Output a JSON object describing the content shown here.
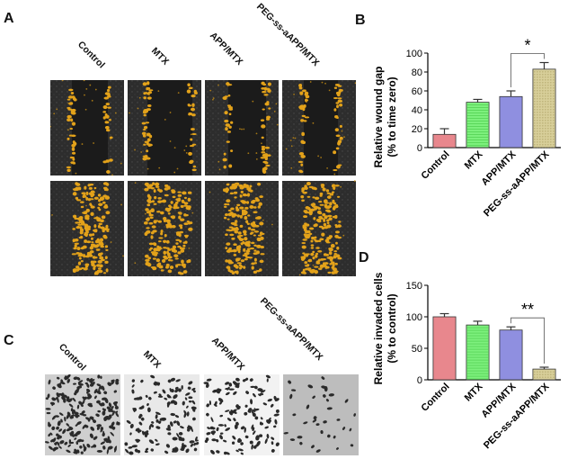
{
  "panels": {
    "a": "A",
    "b": "B",
    "c": "C",
    "d": "D"
  },
  "groups": [
    "Control",
    "MTX",
    "APP/MTX",
    "PEG-ss-aAPP/MTX"
  ],
  "colors": {
    "control": "#e8878d",
    "mtx": "#7df07d",
    "app_mtx": "#8f8fe0",
    "peg": "#d8cf9a",
    "cell_yellow": "#e3a21a",
    "dark_bg": "#2b2b2b"
  },
  "chart_data": [
    {
      "id": "B",
      "type": "bar",
      "ylabel": "Relative wound gap\n(% to time zero)",
      "categories": [
        "Control",
        "MTX",
        "APP/MTX",
        "PEG-ss-aAPP/MTX"
      ],
      "values": [
        14,
        48,
        54,
        83
      ],
      "errors": [
        6,
        3,
        6,
        7
      ],
      "ylim": [
        0,
        100
      ],
      "yticks": [
        0,
        20,
        40,
        60,
        80,
        100
      ],
      "annotations": [
        {
          "text": "*",
          "between": [
            "APP/MTX",
            "PEG-ss-aAPP/MTX"
          ]
        }
      ]
    },
    {
      "id": "D",
      "type": "bar",
      "ylabel": "Relative invaded cells\n(% to control)",
      "categories": [
        "Control",
        "MTX",
        "APP/MTX",
        "PEG-ss-aAPP/MTX"
      ],
      "values": [
        100,
        87,
        79,
        17
      ],
      "errors": [
        5,
        6,
        5,
        3
      ],
      "ylim": [
        0,
        150
      ],
      "yticks": [
        0,
        50,
        100,
        150
      ],
      "annotations": [
        {
          "text": "**",
          "between": [
            "APP/MTX",
            "PEG-ss-aAPP/MTX"
          ]
        }
      ]
    }
  ]
}
